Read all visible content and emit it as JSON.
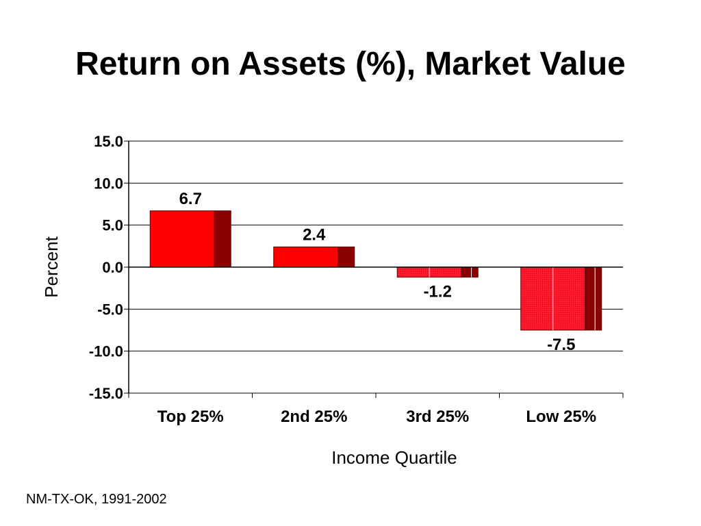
{
  "slide": {
    "title": "Return on Assets (%), Market Value",
    "footnote": "NM-TX-OK, 1991-2002"
  },
  "colors": {
    "bar_front": "#ff0000",
    "bar_side": "#8b0000",
    "bar_negative_front": "#e8102a",
    "bar_outline": "#5a0000",
    "grid": "#000000"
  },
  "chart_data": {
    "type": "bar",
    "categories": [
      "Top 25%",
      "2nd 25%",
      "3rd 25%",
      "Low 25%"
    ],
    "values": [
      6.7,
      2.4,
      -1.2,
      -7.5
    ],
    "data_labels": [
      "6.7",
      "2.4",
      "-1.2",
      "-7.5"
    ],
    "xlabel": "Income Quartile",
    "ylabel": "Percent",
    "ylim": [
      -15,
      15
    ],
    "yticks": [
      15,
      10,
      5,
      0,
      -5,
      -10,
      -15
    ],
    "ytick_labels": [
      "15.0",
      "10.0",
      "5.0",
      "0.0",
      "-5.0",
      "-10.0",
      "-15.0"
    ],
    "grid": true,
    "legend": "none"
  }
}
